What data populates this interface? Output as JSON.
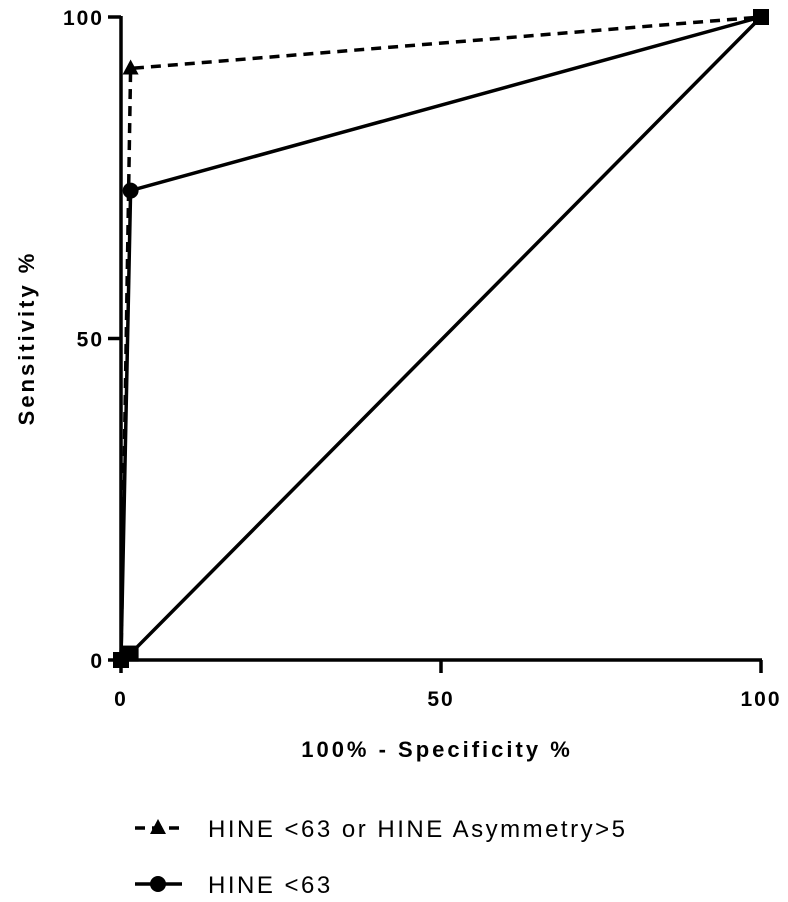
{
  "chart_data": {
    "type": "line",
    "title": "",
    "xlabel": "100% - Specificity %",
    "ylabel": "Sensitivity %",
    "xlim": [
      0,
      100
    ],
    "ylim": [
      0,
      100
    ],
    "xticks": [
      "0",
      "50",
      "100"
    ],
    "yticks": [
      "0",
      "50",
      "100"
    ],
    "grid": false,
    "legend_position": "bottom",
    "series": [
      {
        "name": "HINE <63 or HINE Asymmetry>5",
        "style": "dashed",
        "marker": "triangle",
        "x": [
          0,
          1.5,
          100
        ],
        "y": [
          0,
          92,
          100
        ]
      },
      {
        "name": "HINE <63",
        "style": "solid",
        "marker": "circle",
        "x": [
          0,
          1.5,
          100
        ],
        "y": [
          0,
          73,
          100
        ]
      },
      {
        "name": "",
        "style": "solid",
        "marker": "square",
        "x": [
          0,
          1.5,
          100
        ],
        "y": [
          0,
          1,
          100
        ]
      }
    ]
  }
}
